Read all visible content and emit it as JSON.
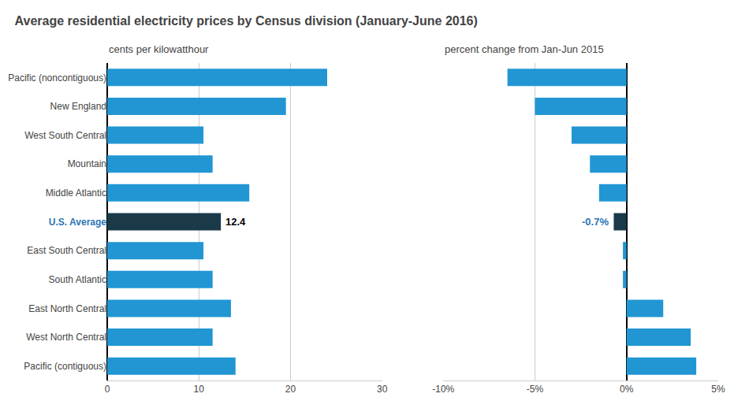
{
  "chart_data": [
    {
      "type": "bar",
      "title": "Average residential electricity prices by Census division (January-June 2016)",
      "subtitle": "cents per kilowatthour",
      "orientation": "horizontal",
      "categories": [
        "Pacific (noncontiguous)",
        "New England",
        "West South Central",
        "Mountain",
        "Middle Atlantic",
        "U.S. Average",
        "East South Central",
        "South Atlantic",
        "East North Central",
        "West North Central",
        "Pacific (contiguous)"
      ],
      "values": [
        24.0,
        19.5,
        10.5,
        11.5,
        15.5,
        12.4,
        10.5,
        11.5,
        13.5,
        11.5,
        14.0
      ],
      "colors": [
        "#2196d3",
        "#2196d3",
        "#2196d3",
        "#2196d3",
        "#2196d3",
        "#1a3a4a",
        "#2196d3",
        "#2196d3",
        "#2196d3",
        "#2196d3",
        "#2196d3"
      ],
      "xlim": [
        0,
        30
      ],
      "xticks": [
        0,
        10,
        20,
        30
      ],
      "grid": true,
      "annotations": [
        {
          "category": "U.S. Average",
          "text": "12.4",
          "color": "#000000"
        }
      ]
    },
    {
      "type": "bar",
      "subtitle": "percent change from Jan-Jun 2015",
      "orientation": "horizontal",
      "categories": [
        "Pacific (noncontiguous)",
        "New England",
        "West South Central",
        "Mountain",
        "Middle Atlantic",
        "U.S. Average",
        "East South Central",
        "South Atlantic",
        "East North Central",
        "West North Central",
        "Pacific (contiguous)"
      ],
      "values": [
        -6.5,
        -5.0,
        -3.0,
        -2.0,
        -1.5,
        -0.7,
        -0.2,
        -0.2,
        2.0,
        3.5,
        3.8
      ],
      "colors": [
        "#2196d3",
        "#2196d3",
        "#2196d3",
        "#2196d3",
        "#2196d3",
        "#1a3a4a",
        "#2196d3",
        "#2196d3",
        "#2196d3",
        "#2196d3",
        "#2196d3"
      ],
      "xlim": [
        -10,
        5
      ],
      "xticks": [
        {
          "value": -10,
          "label": "-10%"
        },
        {
          "value": -5,
          "label": "-5%"
        },
        {
          "value": 0,
          "label": "0%"
        },
        {
          "value": 5,
          "label": "5%"
        }
      ],
      "grid": true,
      "tick_labels": "x",
      "annotations": [
        {
          "category": "U.S. Average",
          "text": "-0.7%",
          "color": "#2e75b6"
        }
      ]
    }
  ]
}
